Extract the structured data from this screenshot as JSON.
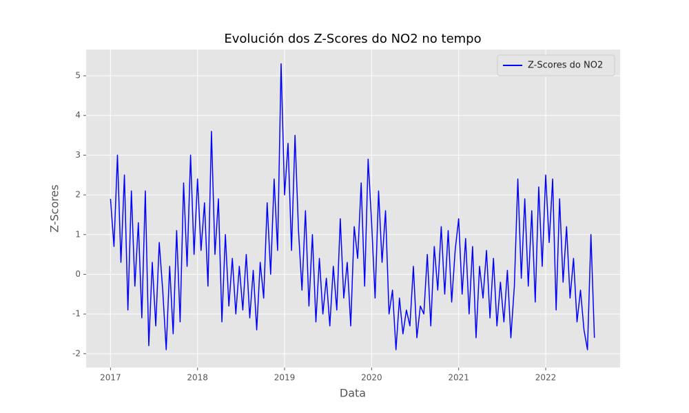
{
  "chart_data": {
    "type": "line",
    "title": "Evolución dos Z-Scores do NO2 no tempo",
    "xlabel": "Data",
    "ylabel": "Z-Scores",
    "xlim": [
      2016.72,
      2022.855
    ],
    "ylim": [
      -2.35,
      5.66
    ],
    "xticks": [
      2017,
      2018,
      2019,
      2020,
      2021,
      2022
    ],
    "yticks": [
      -2,
      -1,
      0,
      1,
      2,
      3,
      4,
      5
    ],
    "grid": true,
    "legend": "upper right",
    "x": [
      2017.0,
      2017.04,
      2017.08,
      2017.12,
      2017.16,
      2017.2,
      2017.24,
      2017.28,
      2017.32,
      2017.36,
      2017.4,
      2017.44,
      2017.48,
      2017.52,
      2017.56,
      2017.6,
      2017.64,
      2017.68,
      2017.72,
      2017.76,
      2017.8,
      2017.84,
      2017.88,
      2017.92,
      2017.96,
      2018.0,
      2018.04,
      2018.08,
      2018.12,
      2018.16,
      2018.2,
      2018.24,
      2018.28,
      2018.32,
      2018.36,
      2018.4,
      2018.44,
      2018.48,
      2018.52,
      2018.56,
      2018.6,
      2018.64,
      2018.68,
      2018.72,
      2018.76,
      2018.8,
      2018.84,
      2018.88,
      2018.92,
      2018.96,
      2019.0,
      2019.04,
      2019.08,
      2019.12,
      2019.16,
      2019.2,
      2019.24,
      2019.28,
      2019.32,
      2019.36,
      2019.4,
      2019.44,
      2019.48,
      2019.52,
      2019.56,
      2019.6,
      2019.64,
      2019.68,
      2019.72,
      2019.76,
      2019.8,
      2019.84,
      2019.88,
      2019.92,
      2019.96,
      2020.0,
      2020.04,
      2020.08,
      2020.12,
      2020.16,
      2020.2,
      2020.24,
      2020.28,
      2020.32,
      2020.36,
      2020.4,
      2020.44,
      2020.48,
      2020.52,
      2020.56,
      2020.6,
      2020.64,
      2020.68,
      2020.72,
      2020.76,
      2020.8,
      2020.84,
      2020.88,
      2020.92,
      2020.96,
      2021.0,
      2021.04,
      2021.08,
      2021.12,
      2021.16,
      2021.2,
      2021.24,
      2021.28,
      2021.32,
      2021.36,
      2021.4,
      2021.44,
      2021.48,
      2021.52,
      2021.56,
      2021.6,
      2021.64,
      2021.68,
      2021.72,
      2021.76,
      2021.8,
      2021.84,
      2021.88,
      2021.92,
      2021.96,
      2022.0,
      2022.04,
      2022.08,
      2022.12,
      2022.16,
      2022.2,
      2022.24,
      2022.28,
      2022.32,
      2022.36,
      2022.4,
      2022.44,
      2022.48,
      2022.52,
      2022.56
    ],
    "series": [
      {
        "name": "Z-Scores do NO2",
        "color": "#0000ff",
        "values": [
          1.9,
          0.7,
          3.0,
          0.3,
          2.5,
          -0.9,
          2.1,
          -0.3,
          1.3,
          -1.1,
          2.1,
          -1.8,
          0.3,
          -1.3,
          0.8,
          -0.4,
          -1.9,
          0.2,
          -1.5,
          1.1,
          -1.2,
          2.3,
          0.2,
          3.0,
          0.5,
          2.4,
          0.6,
          1.8,
          -0.3,
          3.6,
          0.5,
          1.9,
          -1.2,
          1.0,
          -0.8,
          0.4,
          -1.0,
          0.2,
          -0.9,
          0.5,
          -1.1,
          0.1,
          -1.4,
          0.3,
          -0.6,
          1.8,
          0.0,
          2.4,
          0.6,
          5.3,
          2.0,
          3.3,
          0.6,
          3.5,
          1.1,
          -0.4,
          1.6,
          -0.8,
          1.0,
          -1.2,
          0.4,
          -1.0,
          -0.1,
          -1.3,
          0.2,
          -0.9,
          1.4,
          -0.6,
          0.3,
          -1.3,
          1.2,
          0.4,
          2.3,
          -0.3,
          2.9,
          1.3,
          -0.6,
          2.1,
          0.3,
          1.6,
          -1.0,
          -0.4,
          -1.9,
          -0.6,
          -1.5,
          -0.9,
          -1.3,
          0.2,
          -1.6,
          -0.8,
          -1.0,
          0.5,
          -1.3,
          0.7,
          -0.4,
          1.2,
          -0.5,
          1.1,
          -0.7,
          0.6,
          1.4,
          -0.5,
          0.9,
          -1.0,
          0.7,
          -1.6,
          0.2,
          -0.6,
          0.6,
          -1.1,
          0.4,
          -1.3,
          -0.2,
          -1.2,
          0.1,
          -1.6,
          -0.3,
          2.4,
          -0.1,
          1.9,
          -0.3,
          1.6,
          -0.7,
          2.2,
          0.2,
          2.5,
          0.8,
          2.4,
          -0.9,
          1.9,
          -0.2,
          1.2,
          -0.6,
          0.4,
          -1.2,
          -0.4,
          -1.4,
          -1.9,
          1.0,
          -1.6
        ]
      }
    ]
  }
}
